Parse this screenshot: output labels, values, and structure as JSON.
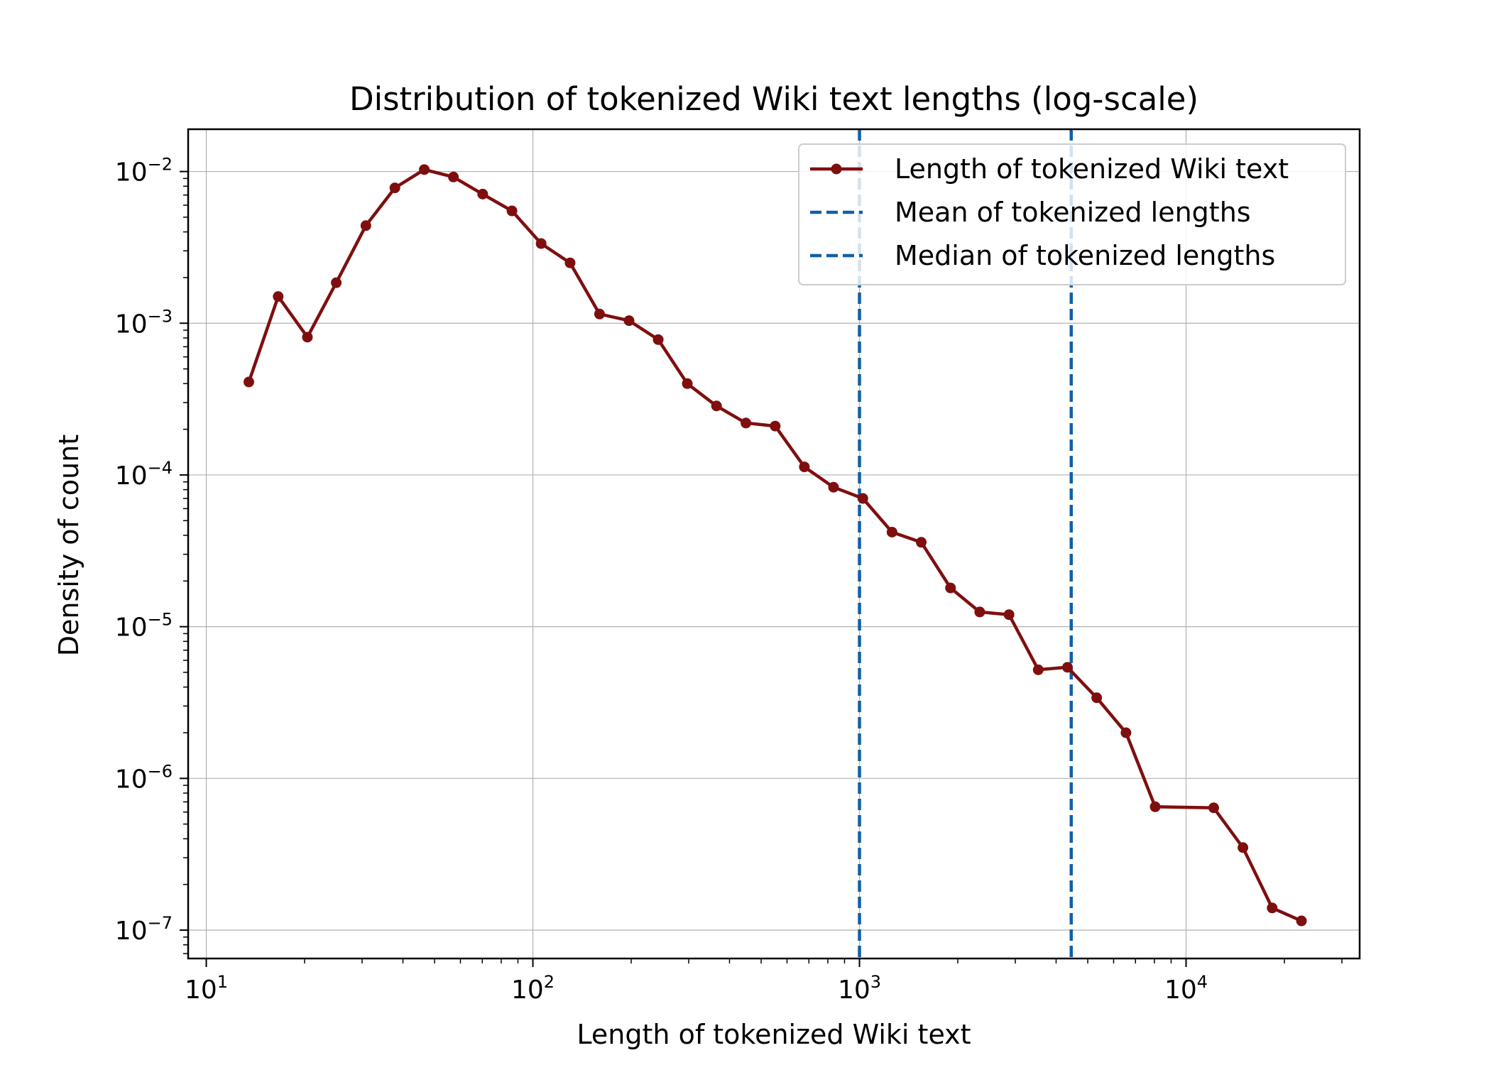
{
  "chart_data": {
    "type": "line",
    "title": "Distribution of tokenized Wiki text lengths (log-scale)",
    "xlabel": "Length of tokenized Wiki text",
    "ylabel": "Density of count",
    "xscale": "log",
    "yscale": "log",
    "xlim": [
      8.8,
      34000
    ],
    "ylim": [
      6.5e-08,
      0.019
    ],
    "grid": true,
    "legend_position": "top-right",
    "x_ticks": [
      {
        "value": 10,
        "base": "10",
        "exp": "1"
      },
      {
        "value": 100,
        "base": "10",
        "exp": "2"
      },
      {
        "value": 1000,
        "base": "10",
        "exp": "3"
      },
      {
        "value": 10000,
        "base": "10",
        "exp": "4"
      }
    ],
    "y_ticks": [
      {
        "value": 0.01,
        "base": "10",
        "exp": "−2"
      },
      {
        "value": 0.001,
        "base": "10",
        "exp": "−3"
      },
      {
        "value": 0.0001,
        "base": "10",
        "exp": "−4"
      },
      {
        "value": 1e-05,
        "base": "10",
        "exp": "−5"
      },
      {
        "value": 1e-06,
        "base": "10",
        "exp": "−6"
      },
      {
        "value": 1e-07,
        "base": "10",
        "exp": "−7"
      }
    ],
    "series": [
      {
        "name": "Length of tokenized Wiki text",
        "color": "#7f0f0f",
        "marker": "circle",
        "x": [
          13.5,
          16.6,
          20.4,
          25.0,
          30.8,
          37.8,
          46.5,
          57.1,
          70.2,
          86.3,
          106,
          130,
          160,
          197,
          242,
          297,
          365,
          449,
          552,
          678,
          833,
          1024,
          1258,
          1546,
          1900,
          2335,
          2870,
          3527,
          4334,
          5326,
          6546,
          8044,
          12150,
          14930,
          18350,
          22560
        ],
        "y": [
          0.00041,
          0.0015,
          0.00081,
          0.00185,
          0.0044,
          0.0078,
          0.0103,
          0.0092,
          0.0071,
          0.0055,
          0.00335,
          0.0025,
          0.00115,
          0.00104,
          0.00078,
          0.0004,
          0.000285,
          0.00022,
          0.00021,
          0.000113,
          8.3e-05,
          7e-05,
          4.2e-05,
          3.6e-05,
          1.8e-05,
          1.25e-05,
          1.2e-05,
          5.2e-06,
          5.4e-06,
          3.4e-06,
          2e-06,
          6.5e-07,
          6.4e-07,
          3.5e-07,
          1.4e-07,
          1.15e-07
        ]
      },
      {
        "name": "Mean of tokenized lengths",
        "color": "#1060a8",
        "style": "dashed-vertical",
        "x_value": 1000
      },
      {
        "name": "Median of tokenized lengths",
        "color": "#1060a8",
        "style": "dashed-vertical",
        "x_value": 4450
      }
    ]
  }
}
